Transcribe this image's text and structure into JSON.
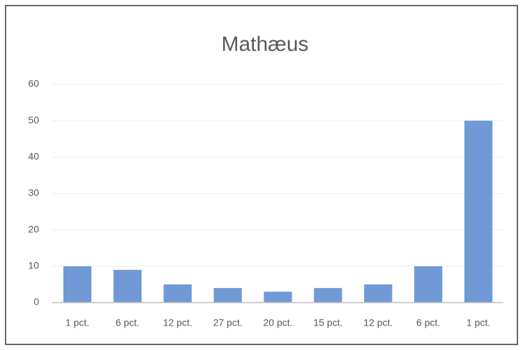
{
  "chart_data": {
    "type": "bar",
    "title": "Mathæus",
    "categories": [
      "1 pct.",
      "6 pct.",
      "12 pct.",
      "27 pct.",
      "20 pct.",
      "15 pct.",
      "12 pct.",
      "6 pct.",
      "1 pct."
    ],
    "values": [
      10,
      9,
      5,
      4,
      3,
      4,
      5,
      10,
      50
    ],
    "color": "#7099d6",
    "ylim": [
      0,
      60
    ],
    "yticks": [
      0,
      10,
      20,
      30,
      40,
      50,
      60
    ],
    "grid": true
  }
}
